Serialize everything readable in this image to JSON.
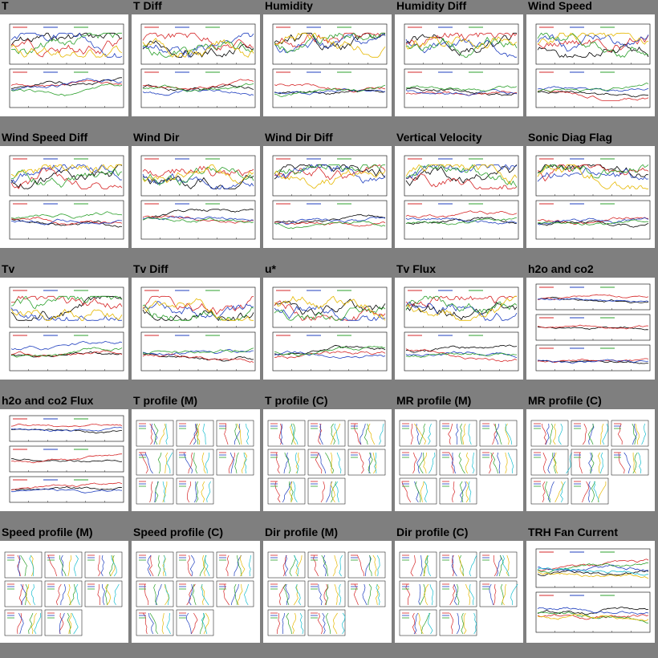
{
  "page": {
    "background": "#7f7f7f"
  },
  "tiles": [
    {
      "title": "T",
      "type": "ts2"
    },
    {
      "title": "T Diff",
      "type": "ts2"
    },
    {
      "title": "Humidity",
      "type": "ts2"
    },
    {
      "title": "Humidity Diff",
      "type": "ts2"
    },
    {
      "title": "Wind Speed",
      "type": "ts2"
    },
    {
      "title": "Wind Speed Diff",
      "type": "ts2"
    },
    {
      "title": "Wind Dir",
      "type": "ts2"
    },
    {
      "title": "Wind Dir Diff",
      "type": "ts2"
    },
    {
      "title": "Vertical Velocity",
      "type": "ts2"
    },
    {
      "title": "Sonic Diag Flag",
      "type": "ts2"
    },
    {
      "title": "Tv",
      "type": "ts2"
    },
    {
      "title": "Tv Diff",
      "type": "ts2"
    },
    {
      "title": "u*",
      "type": "ts2"
    },
    {
      "title": "Tv Flux",
      "type": "ts2"
    },
    {
      "title": "h2o and co2",
      "type": "ts3"
    },
    {
      "title": "h2o and co2 Flux",
      "type": "ts3"
    },
    {
      "title": "T profile (M)",
      "type": "profile"
    },
    {
      "title": "T profile (C)",
      "type": "profile"
    },
    {
      "title": "MR profile (M)",
      "type": "profile"
    },
    {
      "title": "MR profile (C)",
      "type": "profile"
    },
    {
      "title": "Speed profile (M)",
      "type": "profile"
    },
    {
      "title": "Speed profile (C)",
      "type": "profile"
    },
    {
      "title": "Dir profile (M)",
      "type": "profile"
    },
    {
      "title": "Dir profile (C)",
      "type": "profile"
    },
    {
      "title": "TRH Fan Current",
      "type": "ts1"
    }
  ],
  "trace_colors": [
    "#000000",
    "#d62728",
    "#1f3fbf",
    "#2ca02c",
    "#e6b800",
    "#17becf",
    "#9467bd",
    "#8c564b"
  ]
}
